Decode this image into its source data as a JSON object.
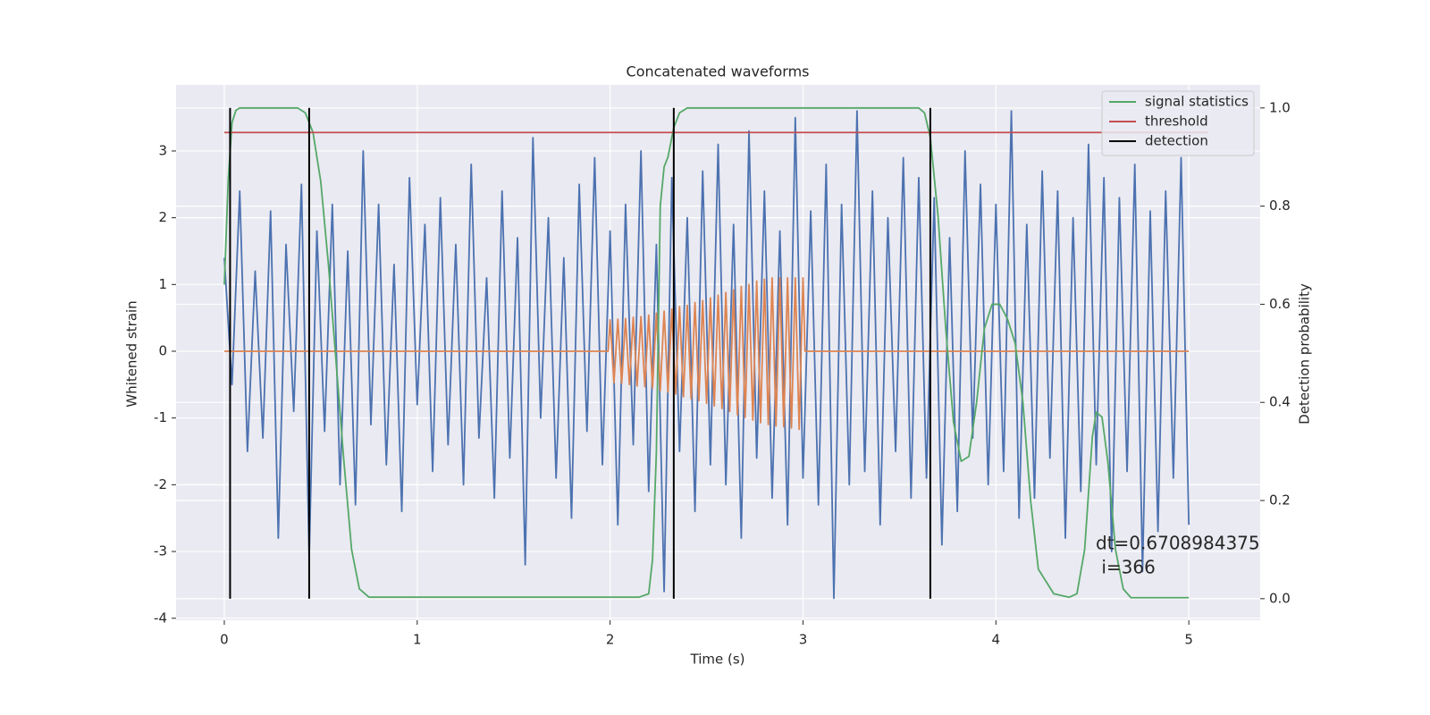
{
  "chart_data": {
    "type": "line",
    "title": "Concatenated waveforms",
    "xlabel": "Time (s)",
    "ylabel": "Whitened strain",
    "y2label": "Detection probability",
    "xlim": [
      -0.25,
      5.37
    ],
    "ylim": [
      -4.03,
      3.99
    ],
    "y2lim": [
      -0.044,
      1.047
    ],
    "xticks": [
      0,
      1,
      2,
      3,
      4,
      5
    ],
    "yticks": [
      -4,
      -3,
      -2,
      -1,
      0,
      1,
      2,
      3
    ],
    "y2ticks": [
      {
        "value": 0,
        "label": "0.0"
      },
      {
        "value": 0.2,
        "label": "0.2"
      },
      {
        "value": 0.4,
        "label": "0.4"
      },
      {
        "value": 0.6,
        "label": "0.6"
      },
      {
        "value": 0.8,
        "label": "0.8"
      },
      {
        "value": 1,
        "label": "1.0"
      }
    ],
    "grid": true,
    "legend": "upper right",
    "annotation": [
      "dt=0.6708984375",
      " i=366"
    ],
    "series": [
      {
        "color": "#4c72b0",
        "x": [
          0,
          0.04,
          0.08,
          0.12,
          0.16,
          0.2,
          0.24,
          0.28,
          0.32,
          0.36,
          0.4,
          0.44,
          0.48,
          0.52,
          0.56,
          0.6,
          0.64,
          0.68,
          0.72,
          0.76,
          0.8,
          0.84,
          0.88,
          0.92,
          0.96,
          1,
          1.04,
          1.08,
          1.12,
          1.16,
          1.2,
          1.24,
          1.28,
          1.32,
          1.36,
          1.4,
          1.44,
          1.48,
          1.52,
          1.56,
          1.6,
          1.64,
          1.68,
          1.72,
          1.76,
          1.8,
          1.84,
          1.88,
          1.92,
          1.96,
          2,
          2.04,
          2.08,
          2.12,
          2.16,
          2.2,
          2.24,
          2.28,
          2.32,
          2.36,
          2.4,
          2.44,
          2.48,
          2.52,
          2.56,
          2.6,
          2.64,
          2.68,
          2.72,
          2.76,
          2.8,
          2.84,
          2.88,
          2.92,
          2.96,
          3,
          3.04,
          3.08,
          3.12,
          3.16,
          3.2,
          3.24,
          3.28,
          3.32,
          3.36,
          3.4,
          3.44,
          3.48,
          3.52,
          3.56,
          3.6,
          3.64,
          3.68,
          3.72,
          3.76,
          3.8,
          3.84,
          3.88,
          3.92,
          3.96,
          4,
          4.04,
          4.08,
          4.12,
          4.16,
          4.2,
          4.24,
          4.28,
          4.32,
          4.36,
          4.4,
          4.44,
          4.48,
          4.52,
          4.56,
          4.6,
          4.64,
          4.68,
          4.72,
          4.76,
          4.8,
          4.84,
          4.88,
          4.92,
          4.96,
          5
        ],
        "values": [
          1.4,
          -0.5,
          2.4,
          -1.5,
          1.2,
          -1.3,
          2.1,
          -2.8,
          1.6,
          -0.9,
          2.5,
          -3.1,
          1.8,
          -1.2,
          2.2,
          -2.0,
          1.5,
          -2.3,
          3.0,
          -1.1,
          2.2,
          -1.7,
          1.3,
          -2.4,
          2.6,
          -0.8,
          1.9,
          -1.8,
          2.3,
          -1.4,
          1.6,
          -2.0,
          2.8,
          -1.3,
          1.1,
          -2.2,
          2.4,
          -1.6,
          1.7,
          -3.2,
          3.2,
          -1.0,
          2.0,
          -1.9,
          1.4,
          -2.5,
          2.5,
          -1.2,
          2.9,
          -1.7,
          1.8,
          -2.6,
          2.2,
          -1.4,
          3.0,
          -2.1,
          1.6,
          -3.6,
          2.6,
          -1.5,
          2.0,
          -2.4,
          2.7,
          -1.7,
          3.1,
          -2.0,
          1.9,
          -2.8,
          3.3,
          -1.6,
          2.4,
          -2.2,
          1.8,
          -2.6,
          3.5,
          -1.9,
          2.1,
          -2.3,
          2.8,
          -3.7,
          2.2,
          -2.0,
          3.6,
          -1.8,
          2.4,
          -2.6,
          2.0,
          -1.5,
          2.9,
          -2.2,
          2.6,
          -1.9,
          2.3,
          -2.9,
          1.7,
          -2.4,
          3.0,
          -1.3,
          2.5,
          -2.0,
          2.2,
          -1.8,
          3.6,
          -2.5,
          1.9,
          -2.2,
          2.7,
          -1.6,
          2.4,
          -2.8,
          2.0,
          -2.1,
          3.1,
          -1.7,
          2.6,
          -3.0,
          2.3,
          -1.8,
          2.8,
          -3.3,
          2.1,
          -2.7,
          2.4,
          -1.9,
          2.9,
          -2.6
        ]
      },
      {
        "color": "#dd8452",
        "x": [
          0,
          1.99,
          2,
          2.02,
          2.04,
          2.06,
          2.08,
          2.1,
          2.12,
          2.14,
          2.16,
          2.18,
          2.2,
          2.22,
          2.24,
          2.26,
          2.28,
          2.3,
          2.32,
          2.34,
          2.36,
          2.38,
          2.4,
          2.42,
          2.44,
          2.46,
          2.48,
          2.5,
          2.52,
          2.54,
          2.56,
          2.58,
          2.6,
          2.62,
          2.64,
          2.66,
          2.68,
          2.7,
          2.72,
          2.74,
          2.76,
          2.78,
          2.8,
          2.82,
          2.84,
          2.86,
          2.88,
          2.9,
          2.92,
          2.94,
          2.96,
          2.98,
          3,
          3.01,
          5
        ],
        "values": [
          0,
          0,
          0.47,
          -0.47,
          0.48,
          -0.48,
          0.49,
          -0.5,
          0.51,
          -0.52,
          0.52,
          -0.53,
          0.54,
          -0.55,
          0.57,
          -0.59,
          0.6,
          -0.61,
          0.63,
          -0.64,
          0.67,
          -0.68,
          0.69,
          -0.71,
          0.73,
          -0.74,
          0.76,
          -0.78,
          0.8,
          -0.82,
          0.84,
          -0.86,
          0.88,
          -0.9,
          0.92,
          -0.95,
          0.97,
          -0.99,
          1,
          -1.03,
          1.05,
          -1.07,
          1.08,
          -1.1,
          1.1,
          -1.12,
          1.1,
          -1.13,
          1.1,
          -1.15,
          1.1,
          -1.17,
          1.1,
          0,
          0
        ]
      },
      {
        "name": "signal statistics",
        "color": "#55a868",
        "axis": "y2",
        "x": [
          0,
          0.02,
          0.04,
          0.06,
          0.08,
          0.1,
          0.38,
          0.42,
          0.46,
          0.5,
          0.54,
          0.58,
          0.62,
          0.66,
          0.7,
          0.75,
          2.15,
          2.2,
          2.22,
          2.24,
          2.26,
          2.28,
          2.3,
          2.33,
          2.36,
          2.4,
          2.5,
          3.6,
          3.63,
          3.66,
          3.7,
          3.74,
          3.78,
          3.82,
          3.86,
          3.9,
          3.94,
          3.98,
          4.02,
          4.06,
          4.1,
          4.14,
          4.18,
          4.22,
          4.3,
          4.38,
          4.42,
          4.46,
          4.5,
          4.52,
          4.55,
          4.58,
          4.62,
          4.66,
          4.7,
          5
        ],
        "values": [
          0.64,
          0.85,
          0.97,
          0.995,
          1,
          1,
          1,
          0.99,
          0.95,
          0.85,
          0.68,
          0.48,
          0.28,
          0.1,
          0.02,
          0.003,
          0.003,
          0.01,
          0.08,
          0.3,
          0.8,
          0.88,
          0.9,
          0.96,
          0.99,
          1,
          1,
          1,
          0.99,
          0.94,
          0.78,
          0.55,
          0.36,
          0.28,
          0.29,
          0.4,
          0.55,
          0.6,
          0.6,
          0.57,
          0.52,
          0.4,
          0.2,
          0.06,
          0.01,
          0.003,
          0.01,
          0.1,
          0.33,
          0.38,
          0.37,
          0.28,
          0.1,
          0.02,
          0.002,
          0.002
        ]
      },
      {
        "name": "threshold",
        "color": "#c44e52",
        "axis": "y2",
        "x": [
          0,
          5.1
        ],
        "values": [
          0.95,
          0.95
        ]
      },
      {
        "name": "detection",
        "color": "#000000",
        "axis": "y2",
        "x": [
          0.03,
          0.44,
          2.33,
          3.66
        ],
        "ymin": 0,
        "ymax": 1
      }
    ]
  }
}
